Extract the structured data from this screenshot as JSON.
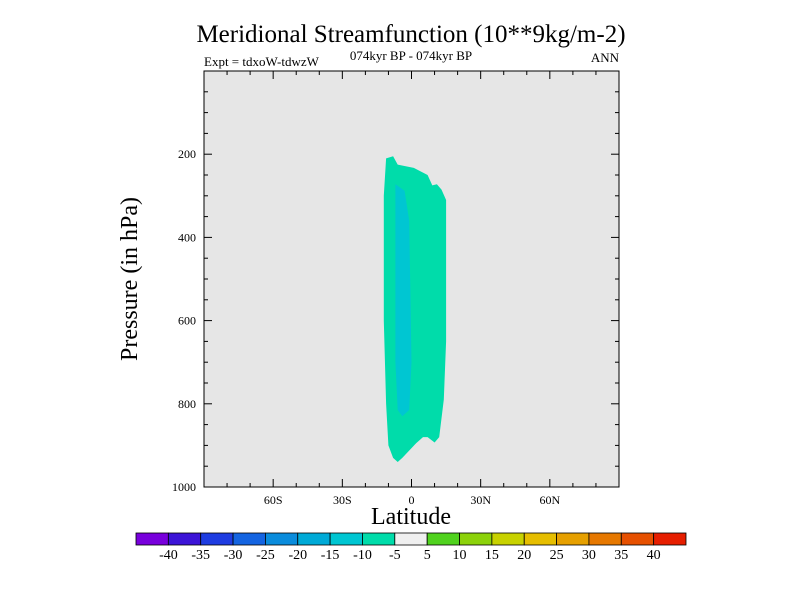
{
  "chart_data": {
    "type": "contour",
    "title": "Meridional Streamfunction (10**9kg/m-2)",
    "subtitle": "074kyr BP - 074kyr BP",
    "expt_label": "Expt = tdxoW-tdwzW",
    "season_label": "ANN",
    "xlabel": "Latitude",
    "ylabel": "Pressure (in hPa)",
    "xlim": [
      -90,
      90
    ],
    "ylim": [
      1000,
      0
    ],
    "x_ticks": [
      -60,
      -30,
      0,
      30,
      60
    ],
    "x_tick_labels": [
      "60S",
      "30S",
      "0",
      "30N",
      "60N"
    ],
    "y_ticks": [
      200,
      400,
      600,
      800,
      1000
    ],
    "y_tick_labels": [
      "200",
      "400",
      "600",
      "800",
      "1000"
    ],
    "background_color": "#e6e6e6",
    "contours": [
      {
        "level": -10,
        "range": "-10 to -5",
        "color": "#00dcaa",
        "points": [
          [
            -11,
            210
          ],
          [
            -8,
            205
          ],
          [
            -6,
            225
          ],
          [
            1,
            233
          ],
          [
            7,
            250
          ],
          [
            9,
            275
          ],
          [
            11,
            272
          ],
          [
            13,
            285
          ],
          [
            15,
            310
          ],
          [
            15,
            650
          ],
          [
            14,
            790
          ],
          [
            12,
            880
          ],
          [
            10,
            893
          ],
          [
            7,
            880
          ],
          [
            5,
            880
          ],
          [
            2,
            895
          ],
          [
            -4,
            930
          ],
          [
            -6,
            940
          ],
          [
            -8,
            930
          ],
          [
            -10,
            900
          ],
          [
            -11,
            800
          ],
          [
            -12,
            600
          ],
          [
            -12,
            300
          ]
        ]
      },
      {
        "level": -15,
        "range": "-15 to -10",
        "color": "#00c6d2",
        "points": [
          [
            -7,
            272
          ],
          [
            -3,
            288
          ],
          [
            -1,
            360
          ],
          [
            0,
            700
          ],
          [
            -1,
            815
          ],
          [
            -4,
            830
          ],
          [
            -6,
            815
          ],
          [
            -7,
            700
          ],
          [
            -7,
            400
          ]
        ]
      }
    ],
    "colorbar": {
      "labels": [
        "-40",
        "-35",
        "-30",
        "-25",
        "-20",
        "-15",
        "-10",
        "-5",
        "5",
        "10",
        "15",
        "20",
        "25",
        "30",
        "35",
        "40"
      ],
      "colors": [
        "#7800dc",
        "#3c14d7",
        "#1e3ce1",
        "#1464e1",
        "#0a8cdc",
        "#00aad7",
        "#00c6d2",
        "#00dcaa",
        "#f0f0f0",
        "#50d21e",
        "#8cd20a",
        "#c8d200",
        "#e6be00",
        "#e6a000",
        "#e67800",
        "#e65000",
        "#e61e00"
      ]
    }
  }
}
